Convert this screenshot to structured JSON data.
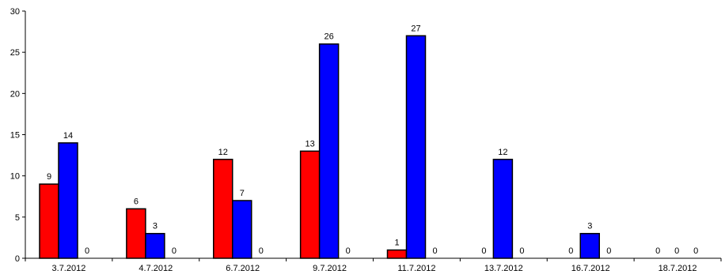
{
  "chart_data": {
    "type": "bar",
    "categories": [
      "3.7.2012",
      "4.7.2012",
      "6.7.2012",
      "9.7.2012",
      "11.7.2012",
      "13.7.2012",
      "16.7.2012",
      "18.7.2012"
    ],
    "series": [
      {
        "color": "#ff0000",
        "values": [
          9,
          6,
          12,
          13,
          1,
          0,
          0,
          0
        ]
      },
      {
        "color": "#0000ff",
        "values": [
          14,
          3,
          7,
          26,
          27,
          12,
          3,
          0
        ]
      },
      {
        "color": "#ffffff",
        "values": [
          0,
          0,
          0,
          0,
          0,
          0,
          0,
          0
        ]
      }
    ],
    "title": "",
    "xlabel": "",
    "ylabel": "",
    "ylim": [
      0,
      30
    ],
    "yticks": [
      0,
      5,
      10,
      15,
      20,
      25,
      30
    ],
    "grid": false,
    "legend": "none"
  }
}
